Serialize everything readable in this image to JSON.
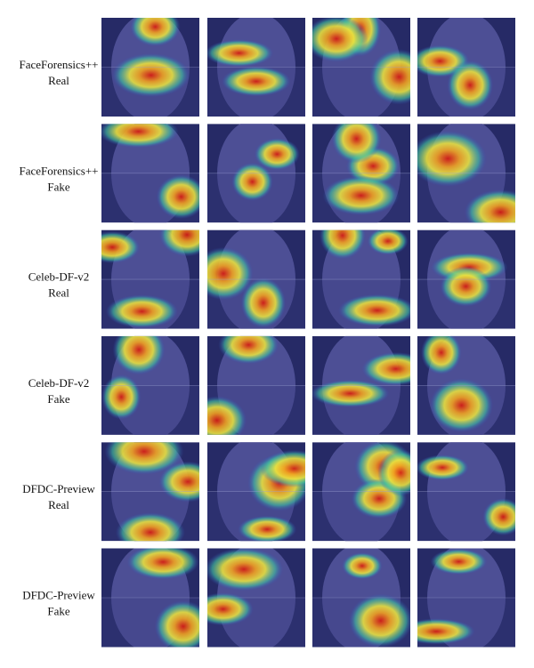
{
  "rows": [
    {
      "dataset": "FaceForensics++",
      "label": "Real",
      "color": "#3a9a3a"
    },
    {
      "dataset": "FaceForensics++",
      "label": "Fake",
      "color": "#e8501a"
    },
    {
      "dataset": "Celeb-DF-v2",
      "label": "Real",
      "color": "#3a9a3a"
    },
    {
      "dataset": "Celeb-DF-v2",
      "label": "Fake",
      "color": "#e8501a"
    },
    {
      "dataset": "DFDC-Preview",
      "label": "Real",
      "color": "#3a9a3a"
    },
    {
      "dataset": "DFDC-Preview",
      "label": "Fake",
      "color": "#e8501a"
    }
  ]
}
